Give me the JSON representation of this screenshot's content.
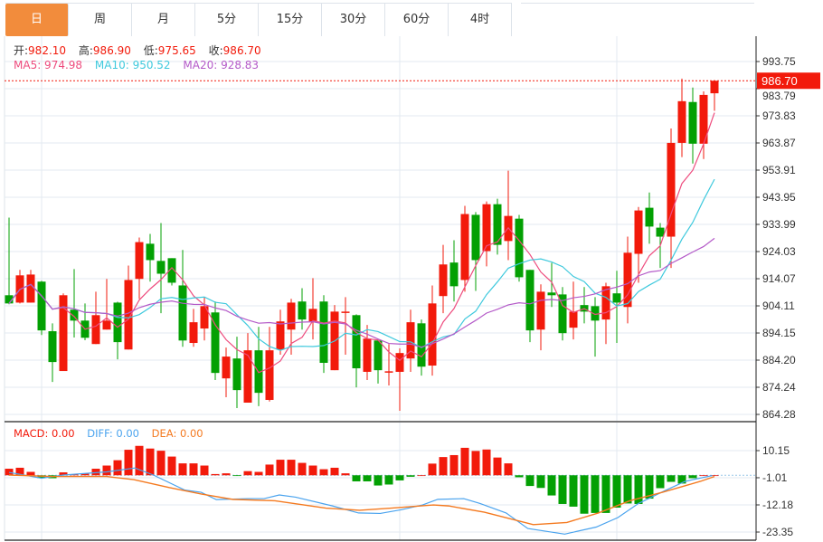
{
  "tabs": [
    {
      "label": "日",
      "active": true
    },
    {
      "label": "周"
    },
    {
      "label": "月"
    },
    {
      "label": "5分"
    },
    {
      "label": "15分"
    },
    {
      "label": "30分"
    },
    {
      "label": "60分"
    },
    {
      "label": "4时"
    }
  ],
  "ohlc_legend": {
    "open_label": "开:",
    "open": "982.10",
    "high_label": "高:",
    "high": "986.90",
    "low_label": "低:",
    "low": "975.65",
    "close_label": "收:",
    "close": "986.70"
  },
  "ma_legend": {
    "ma5": "MA5: 974.98",
    "ma10": "MA10: 950.52",
    "ma20": "MA20: 928.83"
  },
  "macd_legend": {
    "macd": "MACD: 0.00",
    "diff": "DIFF: 0.00",
    "dea": "DEA: 0.00"
  },
  "colors": {
    "up": "#f21a0b",
    "down": "#03a003",
    "accent": "#f28c3c",
    "ma5": "#ee4c7e",
    "ma10": "#3fc9dd",
    "ma20": "#b45ac8",
    "diff": "#4aa3ee",
    "dea": "#f47a20"
  },
  "chart_data": [
    {
      "type": "candlestick",
      "current_price": "986.70",
      "y_ticks": [
        "993.75",
        "983.79",
        "973.83",
        "963.87",
        "953.91",
        "943.95",
        "933.99",
        "924.03",
        "914.07",
        "904.11",
        "894.15",
        "884.20",
        "874.24",
        "864.28"
      ],
      "ylim": [
        864.28,
        993.75
      ],
      "grid": true,
      "ma_periods": [
        5,
        10,
        20
      ],
      "candles_ohlc": [
        [
          908.0,
          936.5,
          904.7,
          905.0
        ],
        [
          905.3,
          917.3,
          905.0,
          915.3
        ],
        [
          905.3,
          917.3,
          905.3,
          915.6
        ],
        [
          913.0,
          913.3,
          893.4,
          895.1
        ],
        [
          894.8,
          897.7,
          876.2,
          883.5
        ],
        [
          880.2,
          908.7,
          880.2,
          908.0
        ],
        [
          902.7,
          917.6,
          892.5,
          898.7
        ],
        [
          898.7,
          905.0,
          891.5,
          892.4
        ],
        [
          890.1,
          909.3,
          890.1,
          900.7
        ],
        [
          895.4,
          914.0,
          895.4,
          898.7
        ],
        [
          905.3,
          905.6,
          884.5,
          890.8
        ],
        [
          888.1,
          918.9,
          888.1,
          913.6
        ],
        [
          914.0,
          929.2,
          906.7,
          927.5
        ],
        [
          926.9,
          930.5,
          913.0,
          920.9
        ],
        [
          920.6,
          934.5,
          901.4,
          915.9
        ],
        [
          921.6,
          921.6,
          911.6,
          912.6
        ],
        [
          911.6,
          924.6,
          889.1,
          891.4
        ],
        [
          890.5,
          903.0,
          889.1,
          898.1
        ],
        [
          895.8,
          907.3,
          891.4,
          904.0
        ],
        [
          901.7,
          905.7,
          876.9,
          879.5
        ],
        [
          877.5,
          888.8,
          870.6,
          885.5
        ],
        [
          884.8,
          892.8,
          866.6,
          873.2
        ],
        [
          868.6,
          894.1,
          868.6,
          887.8
        ],
        [
          887.8,
          896.4,
          867.3,
          872.2
        ],
        [
          869.6,
          896.4,
          869.0,
          887.8
        ],
        [
          888.1,
          902.7,
          886.2,
          898.4
        ],
        [
          895.4,
          906.7,
          886.2,
          905.3
        ],
        [
          905.7,
          910.6,
          895.4,
          899.1
        ],
        [
          898.4,
          914.3,
          891.8,
          903.0
        ],
        [
          905.7,
          908.0,
          879.5,
          883.2
        ],
        [
          880.5,
          904.4,
          880.5,
          902.0
        ],
        [
          901.6,
          907.3,
          886.2,
          902.0
        ],
        [
          900.7,
          901.0,
          874.2,
          881.2
        ],
        [
          879.9,
          897.1,
          876.9,
          892.1
        ],
        [
          891.4,
          891.8,
          875.6,
          880.5
        ],
        [
          879.6,
          890.1,
          874.9,
          880.1
        ],
        [
          879.9,
          888.5,
          865.6,
          886.8
        ],
        [
          884.8,
          902.7,
          879.9,
          898.1
        ],
        [
          897.7,
          899.1,
          878.5,
          881.8
        ],
        [
          882.2,
          911.6,
          878.5,
          905.0
        ],
        [
          907.7,
          926.5,
          901.4,
          919.3
        ],
        [
          920.0,
          928.2,
          905.7,
          911.3
        ],
        [
          913.6,
          940.8,
          909.3,
          937.8
        ],
        [
          937.5,
          938.5,
          909.6,
          920.9
        ],
        [
          924.2,
          942.4,
          918.6,
          941.4
        ],
        [
          941.4,
          943.4,
          922.9,
          926.5
        ],
        [
          927.9,
          953.7,
          920.9,
          937.1
        ],
        [
          936.1,
          937.5,
          913.0,
          914.6
        ],
        [
          917.3,
          917.3,
          890.8,
          895.1
        ],
        [
          895.4,
          912.0,
          887.8,
          909.3
        ],
        [
          909.0,
          919.9,
          903.7,
          908.0
        ],
        [
          908.3,
          911.0,
          891.4,
          894.1
        ],
        [
          896.1,
          913.0,
          891.8,
          902.0
        ],
        [
          904.4,
          911.0,
          897.7,
          902.0
        ],
        [
          904.0,
          907.3,
          885.5,
          898.7
        ],
        [
          899.1,
          912.6,
          890.1,
          911.3
        ],
        [
          908.7,
          917.0,
          890.5,
          905.3
        ],
        [
          903.7,
          929.5,
          897.7,
          923.6
        ],
        [
          923.2,
          940.4,
          912.6,
          939.1
        ],
        [
          940.1,
          945.7,
          926.9,
          933.2
        ],
        [
          932.8,
          934.5,
          918.0,
          929.5
        ],
        [
          929.5,
          969.2,
          918.0,
          963.9
        ],
        [
          963.9,
          987.5,
          958.7,
          979.2
        ],
        [
          978.9,
          984.2,
          956.3,
          963.6
        ],
        [
          963.6,
          982.8,
          958.0,
          981.5
        ],
        [
          982.1,
          986.9,
          975.65,
          986.7
        ]
      ]
    },
    {
      "type": "bar+line",
      "y_ticks": [
        "10.15",
        "-1.01",
        "-12.18",
        "-23.35"
      ],
      "ylim": [
        -26,
        14
      ],
      "macd_histogram": [
        2.7,
        3.1,
        1.4,
        -1.2,
        -1.2,
        1.2,
        0.4,
        0.8,
        2.7,
        4.0,
        6.2,
        10.5,
        12.1,
        11.0,
        10.1,
        7.7,
        4.9,
        4.9,
        4.0,
        0.5,
        0.8,
        -0.2,
        1.7,
        1.4,
        4.4,
        6.4,
        6.4,
        5.1,
        4.0,
        2.5,
        3.1,
        0.8,
        -2.5,
        -2.5,
        -4.2,
        -3.8,
        -2.1,
        -0.6,
        0,
        4.8,
        7.5,
        8.3,
        11.3,
        10.0,
        10.6,
        7.3,
        4.9,
        -0.8,
        -4.4,
        -5.2,
        -8.3,
        -11.8,
        -12.9,
        -15.8,
        -15.5,
        -15.5,
        -13.3,
        -11.6,
        -11.8,
        -9.6,
        -5.3,
        -2.7,
        -3.4,
        -1.2,
        0,
        0
      ],
      "diff_points": [
        [
          1,
          1.2
        ],
        [
          4,
          -1.2
        ],
        [
          6,
          0.1
        ],
        [
          10,
          1.4
        ],
        [
          12.6,
          3.0
        ],
        [
          14.3,
          0.1
        ],
        [
          17.2,
          -6.1
        ],
        [
          18.7,
          -7.0
        ],
        [
          20.1,
          -10.0
        ],
        [
          23,
          -9.6
        ],
        [
          24.5,
          -9.6
        ],
        [
          25.9,
          -8.1
        ],
        [
          27.4,
          -9.0
        ],
        [
          30.8,
          -12.6
        ],
        [
          33.2,
          -15.5
        ],
        [
          35.2,
          -15.7
        ],
        [
          37.1,
          -14.2
        ],
        [
          39.1,
          -12.2
        ],
        [
          40.5,
          -9.9
        ],
        [
          42.9,
          -9.6
        ],
        [
          44.4,
          -11.6
        ],
        [
          46.8,
          -15.5
        ],
        [
          48.8,
          -21.9
        ],
        [
          52.2,
          -24.2
        ],
        [
          55.1,
          -21.3
        ],
        [
          57.1,
          -17.4
        ],
        [
          59,
          -11.6
        ],
        [
          61.4,
          -6.4
        ],
        [
          63.3,
          -2.5
        ],
        [
          65.8,
          -0.1
        ]
      ],
      "dea_points": [
        [
          1,
          0.1
        ],
        [
          5,
          -0.5
        ],
        [
          10,
          -0.5
        ],
        [
          12.5,
          -1.8
        ],
        [
          15.8,
          -5.1
        ],
        [
          18.7,
          -7.7
        ],
        [
          21.6,
          -9.9
        ],
        [
          25.5,
          -10.5
        ],
        [
          30.2,
          -13.5
        ],
        [
          33.3,
          -14.4
        ],
        [
          36.2,
          -13.5
        ],
        [
          40.1,
          -12.2
        ],
        [
          41.5,
          -12.6
        ],
        [
          44.8,
          -15.2
        ],
        [
          49.3,
          -20.3
        ],
        [
          52.4,
          -19.4
        ],
        [
          55.3,
          -15.5
        ],
        [
          58.2,
          -10.5
        ],
        [
          61.2,
          -7.0
        ],
        [
          64.7,
          -2.5
        ],
        [
          66,
          -0.5
        ]
      ]
    }
  ]
}
